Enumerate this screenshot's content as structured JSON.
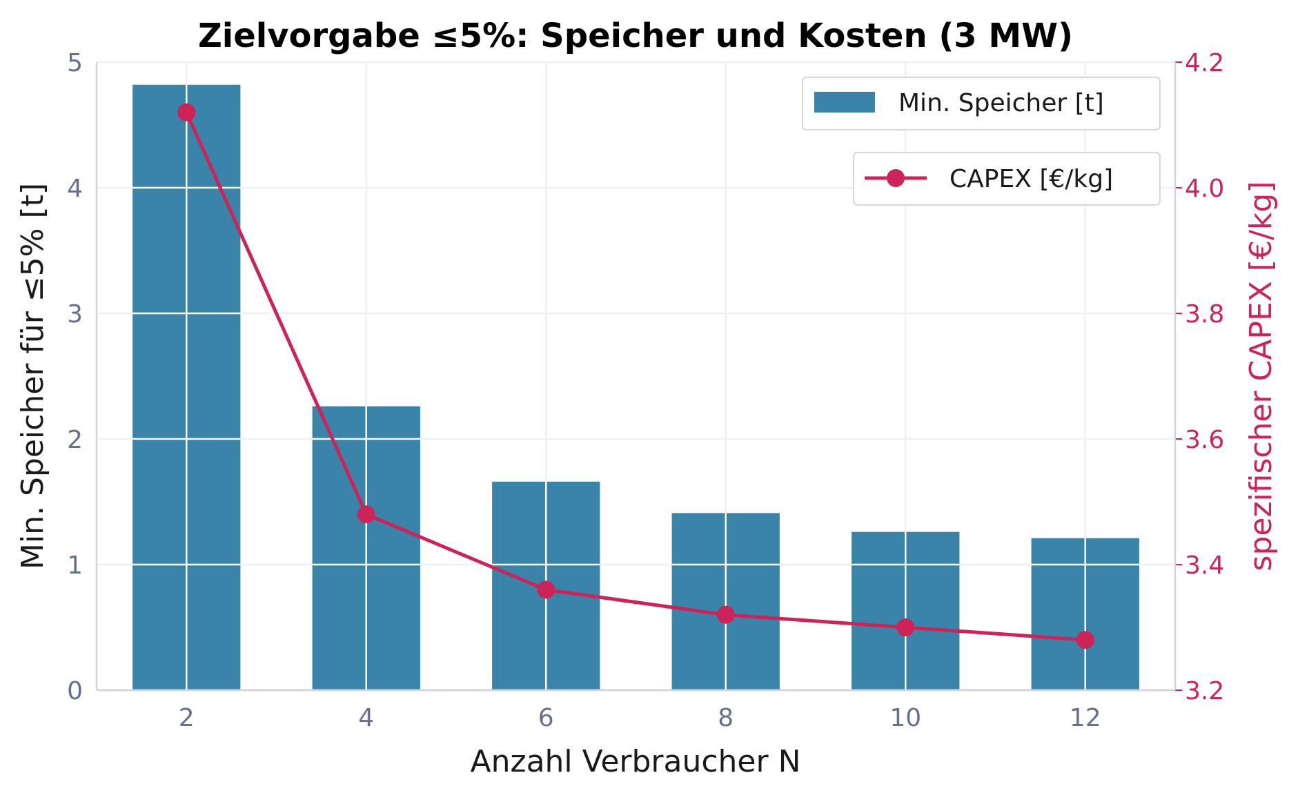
{
  "chart_data": {
    "type": "bar+line",
    "title": "Zielvorgabe ≤5%: Speicher und Kosten (3 MW)",
    "xlabel": "Anzahl Verbraucher N",
    "ylabel": "Min. Speicher für ≤5% [t]",
    "y2label": "spezifischer CAPEX [€/kg]",
    "x": [
      2,
      4,
      6,
      8,
      10,
      12
    ],
    "xticks": [
      "2",
      "4",
      "6",
      "8",
      "10",
      "12"
    ],
    "xlim": [
      1,
      13
    ],
    "ylim": [
      0,
      5
    ],
    "yticks": [
      "0",
      "1",
      "2",
      "3",
      "4",
      "5"
    ],
    "y2lim": [
      3.2,
      4.2
    ],
    "y2ticks": [
      "3.2",
      "3.4",
      "3.6",
      "3.8",
      "4.0",
      "4.2"
    ],
    "grid": true,
    "series": [
      {
        "name": "Min. Speicher [t]",
        "type": "bar",
        "axis": "left",
        "color": "#3a84aa",
        "values": [
          4.82,
          2.26,
          1.66,
          1.41,
          1.26,
          1.21
        ]
      },
      {
        "name": "CAPEX [€/kg]",
        "type": "line",
        "axis": "right",
        "color": "#cc2358",
        "marker": "circle",
        "values": [
          4.12,
          3.48,
          3.36,
          3.32,
          3.3,
          3.28
        ]
      }
    ],
    "legend": [
      {
        "label": "Min. Speicher [t]",
        "placement": "top-right"
      },
      {
        "label": "CAPEX [€/kg]",
        "placement": "top-right"
      }
    ]
  }
}
